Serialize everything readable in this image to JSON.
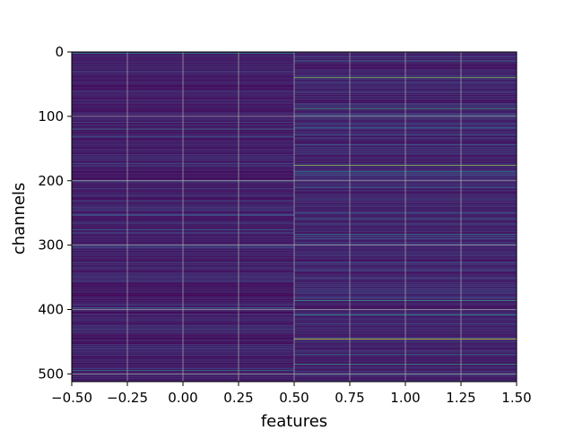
{
  "chart_data": {
    "type": "heatmap",
    "title": "",
    "xlabel": "features",
    "ylabel": "channels",
    "xlim": [
      -0.5,
      1.5
    ],
    "ylim": [
      512,
      0
    ],
    "y_inverted": true,
    "grid": true,
    "colormap": "viridis",
    "columns": [
      0,
      1
    ],
    "n_channels": 512,
    "x_ticks": [
      {
        "value": -0.5,
        "label": "−0.50"
      },
      {
        "value": -0.25,
        "label": "−0.25"
      },
      {
        "value": 0.0,
        "label": "0.00"
      },
      {
        "value": 0.25,
        "label": "0.25"
      },
      {
        "value": 0.5,
        "label": "0.50"
      },
      {
        "value": 0.75,
        "label": "0.75"
      },
      {
        "value": 1.0,
        "label": "1.00"
      },
      {
        "value": 1.25,
        "label": "1.25"
      },
      {
        "value": 1.5,
        "label": "1.50"
      }
    ],
    "y_ticks": [
      {
        "value": 0,
        "label": "0"
      },
      {
        "value": 100,
        "label": "100"
      },
      {
        "value": 200,
        "label": "200"
      },
      {
        "value": 300,
        "label": "300"
      },
      {
        "value": 400,
        "label": "400"
      },
      {
        "value": 500,
        "label": "500"
      }
    ],
    "base_values": [
      0.08,
      0.1
    ],
    "highlights": [
      {
        "column": 0,
        "channel": 2,
        "value": 0.45
      },
      {
        "column": 0,
        "channel": 120,
        "value": 0.32
      },
      {
        "column": 0,
        "channel": 132,
        "value": 0.28
      },
      {
        "column": 0,
        "channel": 200,
        "value": 0.42
      },
      {
        "column": 0,
        "channel": 276,
        "value": 0.3
      },
      {
        "column": 0,
        "channel": 300,
        "value": 0.4
      },
      {
        "column": 0,
        "channel": 398,
        "value": 0.35
      },
      {
        "column": 0,
        "channel": 430,
        "value": 0.28
      },
      {
        "column": 0,
        "channel": 495,
        "value": 0.45
      },
      {
        "column": 0,
        "channel": 500,
        "value": 0.3
      },
      {
        "column": 1,
        "channel": 14,
        "value": 0.3
      },
      {
        "column": 1,
        "channel": 40,
        "value": 0.8
      },
      {
        "column": 1,
        "channel": 88,
        "value": 0.6
      },
      {
        "column": 1,
        "channel": 100,
        "value": 0.4
      },
      {
        "column": 1,
        "channel": 118,
        "value": 0.35
      },
      {
        "column": 1,
        "channel": 176,
        "value": 0.82
      },
      {
        "column": 1,
        "channel": 186,
        "value": 0.4
      },
      {
        "column": 1,
        "channel": 260,
        "value": 0.35
      },
      {
        "column": 1,
        "channel": 283,
        "value": 0.38
      },
      {
        "column": 1,
        "channel": 386,
        "value": 0.55
      },
      {
        "column": 1,
        "channel": 408,
        "value": 0.5
      },
      {
        "column": 1,
        "channel": 446,
        "value": 0.92
      },
      {
        "column": 1,
        "channel": 470,
        "value": 0.4
      },
      {
        "column": 1,
        "channel": 485,
        "value": 0.55
      },
      {
        "column": 1,
        "channel": 500,
        "value": 0.42
      }
    ]
  }
}
